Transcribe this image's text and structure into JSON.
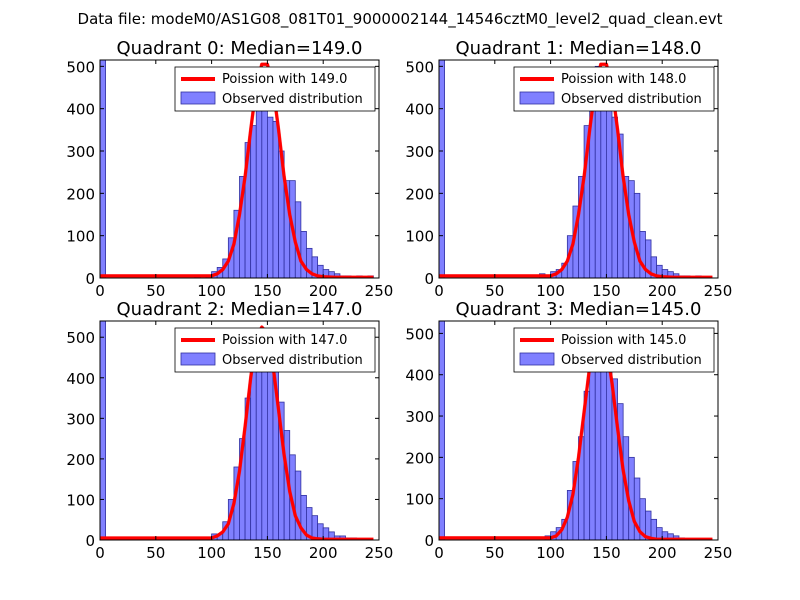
{
  "suptitle": "Data file: modeM0/AS1G08_081T01_9000002144_14546cztM0_level2_quad_clean.evt",
  "colors": {
    "hist_fill": "#8080ff",
    "hist_edge": "#3030a0",
    "curve": "#ff0000",
    "axes": "#000000"
  },
  "chart_data": [
    {
      "type": "bar",
      "title": "Quadrant 0: Median=149.0",
      "xlim": [
        0,
        250
      ],
      "ylim": [
        0,
        515
      ],
      "xticks": [
        "0",
        "50",
        "100",
        "150",
        "200",
        "250"
      ],
      "yticks": [
        "0",
        "100",
        "200",
        "300",
        "400",
        "500"
      ],
      "legend": [
        "Poission with 149.0",
        "Observed distribution"
      ],
      "legend_loc": "top-right",
      "bin_width": 5,
      "bins": [
        [
          0,
          515
        ],
        [
          85,
          5
        ],
        [
          95,
          5
        ],
        [
          100,
          15
        ],
        [
          105,
          25
        ],
        [
          110,
          45
        ],
        [
          115,
          95
        ],
        [
          120,
          160
        ],
        [
          125,
          240
        ],
        [
          130,
          320
        ],
        [
          135,
          360
        ],
        [
          140,
          480
        ],
        [
          145,
          470
        ],
        [
          150,
          380
        ],
        [
          155,
          370
        ],
        [
          160,
          300
        ],
        [
          165,
          230
        ],
        [
          170,
          230
        ],
        [
          175,
          180
        ],
        [
          180,
          110
        ],
        [
          185,
          70
        ],
        [
          190,
          50
        ],
        [
          195,
          30
        ],
        [
          200,
          20
        ],
        [
          205,
          15
        ],
        [
          210,
          10
        ],
        [
          215,
          5
        ],
        [
          220,
          5
        ],
        [
          230,
          5
        ],
        [
          240,
          5
        ]
      ],
      "curve": {
        "name": "Poission with 149.0",
        "x": [
          0,
          100,
          105,
          110,
          115,
          120,
          125,
          130,
          135,
          140,
          145,
          150,
          155,
          160,
          165,
          170,
          175,
          180,
          185,
          190,
          195,
          200,
          210,
          220,
          245
        ],
        "y": [
          5,
          5,
          10,
          20,
          40,
          80,
          150,
          240,
          350,
          450,
          505,
          505,
          450,
          350,
          240,
          150,
          85,
          40,
          20,
          10,
          5,
          3,
          2,
          2,
          2
        ]
      }
    },
    {
      "type": "bar",
      "title": "Quadrant 1: Median=148.0",
      "xlim": [
        0,
        250
      ],
      "ylim": [
        0,
        515
      ],
      "xticks": [
        "0",
        "50",
        "100",
        "150",
        "200",
        "250"
      ],
      "yticks": [
        "0",
        "100",
        "200",
        "300",
        "400",
        "500"
      ],
      "legend": [
        "Poission with 148.0",
        "Observed distribution"
      ],
      "legend_loc": "top-right",
      "bin_width": 5,
      "bins": [
        [
          0,
          515
        ],
        [
          90,
          10
        ],
        [
          95,
          5
        ],
        [
          100,
          15
        ],
        [
          105,
          20
        ],
        [
          110,
          35
        ],
        [
          115,
          100
        ],
        [
          120,
          170
        ],
        [
          125,
          240
        ],
        [
          130,
          360
        ],
        [
          135,
          420
        ],
        [
          140,
          500
        ],
        [
          145,
          470
        ],
        [
          150,
          410
        ],
        [
          155,
          380
        ],
        [
          160,
          340
        ],
        [
          165,
          240
        ],
        [
          170,
          230
        ],
        [
          175,
          200
        ],
        [
          180,
          110
        ],
        [
          185,
          90
        ],
        [
          190,
          50
        ],
        [
          195,
          30
        ],
        [
          200,
          20
        ],
        [
          205,
          15
        ],
        [
          210,
          10
        ],
        [
          215,
          5
        ],
        [
          220,
          5
        ],
        [
          230,
          5
        ]
      ],
      "curve": {
        "name": "Poission with 148.0",
        "x": [
          0,
          100,
          105,
          110,
          115,
          120,
          125,
          130,
          135,
          140,
          145,
          150,
          155,
          160,
          165,
          170,
          175,
          180,
          185,
          190,
          195,
          200,
          210,
          220,
          245
        ],
        "y": [
          5,
          5,
          10,
          20,
          40,
          80,
          150,
          240,
          350,
          450,
          505,
          505,
          450,
          350,
          240,
          150,
          85,
          40,
          20,
          10,
          5,
          3,
          2,
          2,
          2
        ]
      }
    },
    {
      "type": "bar",
      "title": "Quadrant 2: Median=147.0",
      "xlim": [
        0,
        250
      ],
      "ylim": [
        0,
        540
      ],
      "xticks": [
        "0",
        "50",
        "100",
        "150",
        "200",
        "250"
      ],
      "yticks": [
        "0",
        "100",
        "200",
        "300",
        "400",
        "500"
      ],
      "legend": [
        "Poission with 147.0",
        "Observed distribution"
      ],
      "legend_loc": "top-right",
      "bin_width": 5,
      "bins": [
        [
          0,
          540
        ],
        [
          95,
          5
        ],
        [
          100,
          15
        ],
        [
          105,
          15
        ],
        [
          110,
          45
        ],
        [
          115,
          100
        ],
        [
          120,
          180
        ],
        [
          125,
          250
        ],
        [
          130,
          350
        ],
        [
          135,
          460
        ],
        [
          140,
          500
        ],
        [
          145,
          520
        ],
        [
          150,
          440
        ],
        [
          155,
          440
        ],
        [
          160,
          340
        ],
        [
          165,
          270
        ],
        [
          170,
          210
        ],
        [
          175,
          170
        ],
        [
          180,
          110
        ],
        [
          185,
          80
        ],
        [
          190,
          60
        ],
        [
          195,
          40
        ],
        [
          200,
          30
        ],
        [
          205,
          20
        ],
        [
          210,
          10
        ],
        [
          215,
          10
        ],
        [
          220,
          5
        ],
        [
          225,
          5
        ]
      ],
      "curve": {
        "name": "Poission with 147.0",
        "x": [
          0,
          100,
          105,
          110,
          115,
          120,
          125,
          130,
          135,
          140,
          145,
          150,
          155,
          160,
          165,
          170,
          175,
          180,
          185,
          190,
          195,
          200,
          210,
          220,
          245
        ],
        "y": [
          5,
          5,
          10,
          20,
          40,
          90,
          170,
          280,
          400,
          500,
          525,
          510,
          430,
          320,
          210,
          120,
          60,
          30,
          12,
          5,
          3,
          2,
          2,
          2,
          2
        ]
      }
    },
    {
      "type": "bar",
      "title": "Quadrant 3: Median=145.0",
      "xlim": [
        0,
        250
      ],
      "ylim": [
        0,
        530
      ],
      "xticks": [
        "0",
        "50",
        "100",
        "150",
        "200",
        "250"
      ],
      "yticks": [
        "0",
        "100",
        "200",
        "300",
        "400",
        "500"
      ],
      "legend": [
        "Poission with 145.0",
        "Observed distribution"
      ],
      "legend_loc": "top-right",
      "bin_width": 5,
      "bins": [
        [
          0,
          530
        ],
        [
          95,
          10
        ],
        [
          100,
          20
        ],
        [
          105,
          30
        ],
        [
          110,
          50
        ],
        [
          115,
          120
        ],
        [
          120,
          190
        ],
        [
          125,
          250
        ],
        [
          130,
          360
        ],
        [
          135,
          470
        ],
        [
          140,
          500
        ],
        [
          145,
          470
        ],
        [
          150,
          420
        ],
        [
          155,
          390
        ],
        [
          160,
          330
        ],
        [
          165,
          250
        ],
        [
          170,
          200
        ],
        [
          175,
          150
        ],
        [
          180,
          100
        ],
        [
          185,
          70
        ],
        [
          190,
          50
        ],
        [
          195,
          30
        ],
        [
          200,
          20
        ],
        [
          205,
          15
        ],
        [
          210,
          10
        ],
        [
          215,
          5
        ]
      ],
      "curve": {
        "name": "Poission with 145.0",
        "x": [
          0,
          100,
          105,
          110,
          115,
          120,
          125,
          130,
          135,
          140,
          145,
          150,
          155,
          160,
          165,
          170,
          175,
          180,
          185,
          190,
          195,
          200,
          210,
          220,
          245
        ],
        "y": [
          5,
          5,
          10,
          25,
          55,
          110,
          200,
          310,
          420,
          490,
          505,
          470,
          380,
          270,
          170,
          95,
          45,
          20,
          8,
          4,
          2,
          2,
          2,
          2,
          2
        ]
      }
    }
  ]
}
